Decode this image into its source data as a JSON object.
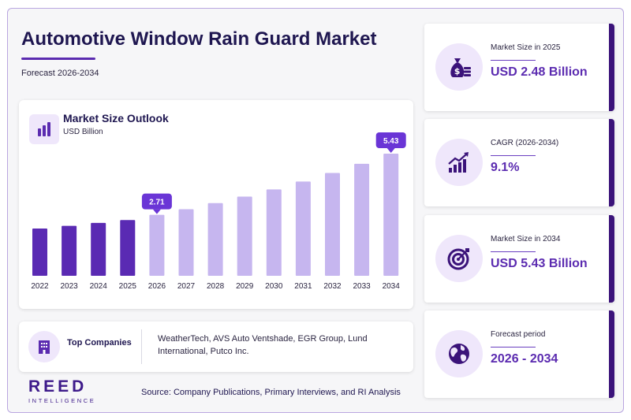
{
  "header": {
    "title": "Automotive Window Rain Guard Market",
    "subtitle": "Forecast 2026-2034"
  },
  "chart_card": {
    "title": "Market Size Outlook",
    "unit": "USD Billion"
  },
  "chart_data": {
    "type": "bar",
    "categories": [
      "2022",
      "2023",
      "2024",
      "2025",
      "2026",
      "2027",
      "2028",
      "2029",
      "2030",
      "2031",
      "2032",
      "2033",
      "2034"
    ],
    "values": [
      2.1,
      2.22,
      2.35,
      2.48,
      2.71,
      2.96,
      3.23,
      3.52,
      3.84,
      4.19,
      4.57,
      4.98,
      5.43
    ],
    "callouts": [
      {
        "index": 4,
        "label": "2.71"
      },
      {
        "index": 12,
        "label": "5.43"
      }
    ],
    "ylim": [
      0,
      5.43
    ],
    "grid": false,
    "colors": {
      "historical": "#5a2ab3",
      "forecast": "#c6b6ef",
      "callout": "#6a35d6"
    }
  },
  "companies": {
    "label": "Top Companies",
    "text": "WeatherTech, AVS Auto Ventshade, EGR Group, Lund International, Putco Inc."
  },
  "footer": {
    "logo_main": "REED",
    "logo_sub": "INTELLIGENCE",
    "source": "Source: Company Publications, Primary Interviews, and RI Analysis"
  },
  "kpis": [
    {
      "label": "Market Size in 2025",
      "value": "USD 2.48 Billion",
      "icon": "money-bag-icon"
    },
    {
      "label": "CAGR (2026-2034)",
      "value": "9.1%",
      "icon": "growth-chart-icon"
    },
    {
      "label": "Market Size in 2034",
      "value": "USD 5.43 Billion",
      "icon": "target-icon"
    },
    {
      "label": "Forecast period",
      "value": "2026 - 2034",
      "icon": "globe-icon"
    }
  ],
  "colors": {
    "accent": "#5b2bb0",
    "dark": "#1e1650",
    "kpi_border": "#3b137a"
  }
}
